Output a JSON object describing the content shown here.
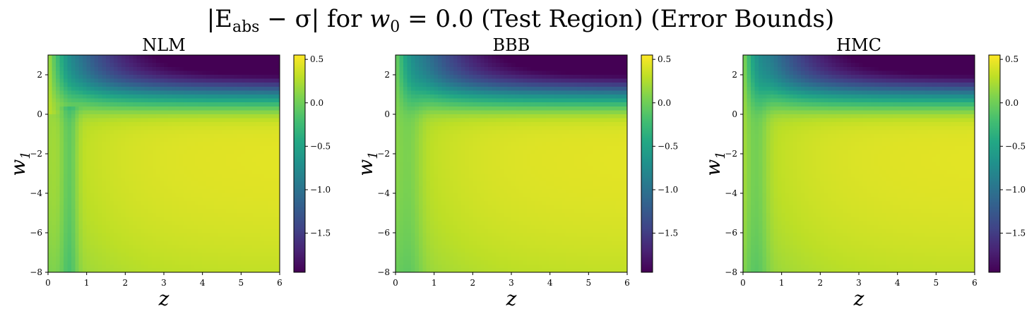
{
  "figure": {
    "suptitle": {
      "expr": "|E",
      "sub": "abs",
      "mid": " − σ| for ",
      "var": "w",
      "var_sub": "0",
      "rest": " = 0.0 (Test Region) (Error Bounds)"
    }
  },
  "chart_data": [
    {
      "type": "heatmap",
      "title": "NLM",
      "xlabel": "z",
      "ylabel": "w",
      "ylabel_sub": "1",
      "xlim": [
        0,
        6
      ],
      "ylim": [
        -8,
        3
      ],
      "xticks": [
        "0",
        "1",
        "2",
        "3",
        "4",
        "5",
        "6"
      ],
      "yticks": [
        "2",
        "0",
        "−2",
        "−4",
        "−6",
        "−8"
      ],
      "ytick_values": [
        2,
        0,
        -2,
        -4,
        -6,
        -8
      ],
      "colorbar": {
        "min": -1.95,
        "max": 0.55,
        "ticks": [
          "0.5",
          "0.0",
          "−0.5",
          "−1.0",
          "−1.5"
        ],
        "tick_values": [
          0.5,
          0.0,
          -0.5,
          -1.0,
          -1.5
        ],
        "colormap": "viridis"
      },
      "variant": "nlm"
    },
    {
      "type": "heatmap",
      "title": "BBB",
      "xlabel": "z",
      "ylabel": "w",
      "ylabel_sub": "1",
      "xlim": [
        0,
        6
      ],
      "ylim": [
        -8,
        3
      ],
      "xticks": [
        "0",
        "1",
        "2",
        "3",
        "4",
        "5",
        "6"
      ],
      "yticks": [
        "2",
        "0",
        "−2",
        "−4",
        "−6",
        "−8"
      ],
      "ytick_values": [
        2,
        0,
        -2,
        -4,
        -6,
        -8
      ],
      "colorbar": {
        "min": -1.95,
        "max": 0.55,
        "ticks": [
          "0.5",
          "0.0",
          "−0.5",
          "−1.0",
          "−1.5"
        ],
        "tick_values": [
          0.5,
          0.0,
          -0.5,
          -1.0,
          -1.5
        ],
        "colormap": "viridis"
      },
      "variant": "bbb"
    },
    {
      "type": "heatmap",
      "title": "HMC",
      "xlabel": "z",
      "ylabel": "w",
      "ylabel_sub": "1",
      "xlim": [
        0,
        6
      ],
      "ylim": [
        -8,
        3
      ],
      "xticks": [
        "0",
        "1",
        "2",
        "3",
        "4",
        "5",
        "6"
      ],
      "yticks": [
        "2",
        "0",
        "−2",
        "−4",
        "−6",
        "−8"
      ],
      "ytick_values": [
        2,
        0,
        -2,
        -4,
        -6,
        -8
      ],
      "colorbar": {
        "min": -1.95,
        "max": 0.55,
        "ticks": [
          "0.5",
          "0.0",
          "−0.5",
          "−1.0",
          "−1.5"
        ],
        "tick_values": [
          0.5,
          0.0,
          -0.5,
          -1.0,
          -1.5
        ],
        "colormap": "viridis"
      },
      "variant": "hmc"
    }
  ]
}
